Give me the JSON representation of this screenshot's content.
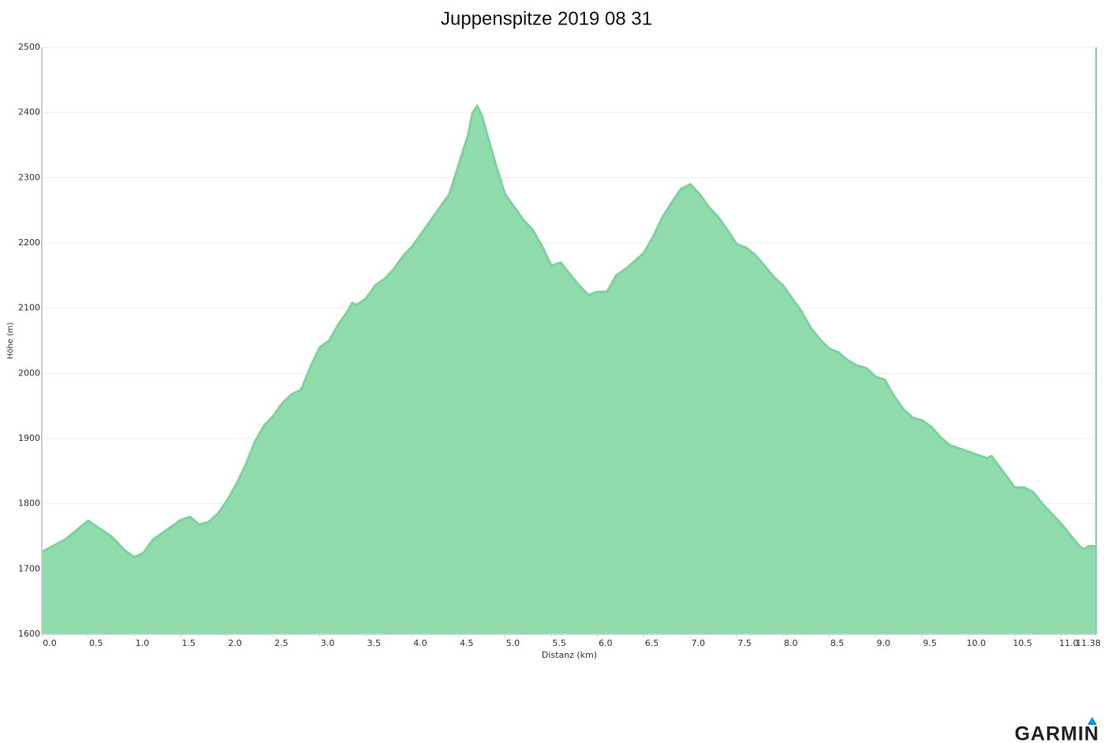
{
  "chart_data": {
    "type": "area",
    "title": "Juppenspitze 2019 08 31",
    "x_label": "Distanz   (km)",
    "y_label": "Höhe (m)",
    "brand": "GARMIN",
    "color": "#8fdbac",
    "line_color": "#7dd19f",
    "grid": true,
    "x": [
      0,
      0.25,
      0.5,
      0.75,
      0.9,
      1.0,
      1.1,
      1.2,
      1.4,
      1.5,
      1.6,
      1.7,
      1.8,
      1.9,
      2.0,
      2.1,
      2.2,
      2.3,
      2.4,
      2.5,
      2.6,
      2.7,
      2.8,
      2.9,
      3.0,
      3.1,
      3.2,
      3.3,
      3.35,
      3.4,
      3.5,
      3.6,
      3.7,
      3.8,
      3.9,
      4.0,
      4.1,
      4.2,
      4.3,
      4.4,
      4.5,
      4.6,
      4.65,
      4.7,
      4.75,
      4.8,
      4.9,
      5.0,
      5.1,
      5.2,
      5.3,
      5.4,
      5.5,
      5.6,
      5.7,
      5.8,
      5.9,
      6.0,
      6.1,
      6.2,
      6.3,
      6.4,
      6.5,
      6.6,
      6.7,
      6.8,
      6.9,
      7.0,
      7.1,
      7.2,
      7.3,
      7.4,
      7.5,
      7.6,
      7.7,
      7.8,
      7.9,
      8.0,
      8.1,
      8.2,
      8.3,
      8.4,
      8.5,
      8.6,
      8.7,
      8.8,
      8.9,
      9.0,
      9.1,
      9.2,
      9.3,
      9.4,
      9.5,
      9.6,
      9.7,
      9.8,
      9.9,
      10.0,
      10.1,
      10.2,
      10.25,
      10.4,
      10.5,
      10.6,
      10.7,
      10.8,
      10.9,
      11.0,
      11.1,
      11.2,
      11.25,
      11.3,
      11.38
    ],
    "values": [
      1726,
      1745,
      1774,
      1750,
      1728,
      1718,
      1725,
      1745,
      1765,
      1775,
      1780,
      1768,
      1772,
      1785,
      1805,
      1830,
      1860,
      1895,
      1920,
      1935,
      1955,
      1968,
      1975,
      2010,
      2040,
      2050,
      2075,
      2095,
      2108,
      2105,
      2115,
      2135,
      2145,
      2160,
      2180,
      2195,
      2215,
      2235,
      2255,
      2275,
      2320,
      2365,
      2400,
      2410,
      2395,
      2370,
      2320,
      2275,
      2255,
      2235,
      2220,
      2195,
      2165,
      2170,
      2152,
      2135,
      2120,
      2125,
      2125,
      2150,
      2160,
      2172,
      2185,
      2210,
      2240,
      2262,
      2283,
      2290,
      2275,
      2255,
      2240,
      2220,
      2198,
      2193,
      2182,
      2165,
      2148,
      2135,
      2115,
      2095,
      2070,
      2052,
      2038,
      2032,
      2020,
      2012,
      2008,
      1995,
      1990,
      1965,
      1945,
      1932,
      1928,
      1918,
      1902,
      1890,
      1885,
      1880,
      1875,
      1870,
      1873,
      1845,
      1825,
      1825,
      1818,
      1800,
      1785,
      1770,
      1752,
      1735,
      1730,
      1735,
      1735
    ],
    "xlim": [
      0,
      11.38
    ],
    "ylim": [
      1600,
      2500
    ],
    "xticks": [
      {
        "value": 0,
        "label": "0.0"
      },
      0.5,
      {
        "value": 1,
        "label": "1.0"
      },
      1.5,
      {
        "value": 2,
        "label": "2.0"
      },
      2.5,
      {
        "value": 3,
        "label": "3.0"
      },
      3.5,
      {
        "value": 4,
        "label": "4.0"
      },
      4.5,
      {
        "value": 5,
        "label": "5.0"
      },
      5.5,
      {
        "value": 6,
        "label": "6.0"
      },
      6.5,
      {
        "value": 7,
        "label": "7.0"
      },
      7.5,
      {
        "value": 8,
        "label": "8.0"
      },
      8.5,
      {
        "value": 9,
        "label": "9.0"
      },
      9.5,
      {
        "value": 10,
        "label": "10.0"
      },
      10.5,
      {
        "value": 11,
        "label": "11.0"
      },
      11.38
    ],
    "yticks": [
      1600,
      1700,
      1800,
      1900,
      2000,
      2100,
      2200,
      2300,
      2400,
      2500
    ]
  }
}
